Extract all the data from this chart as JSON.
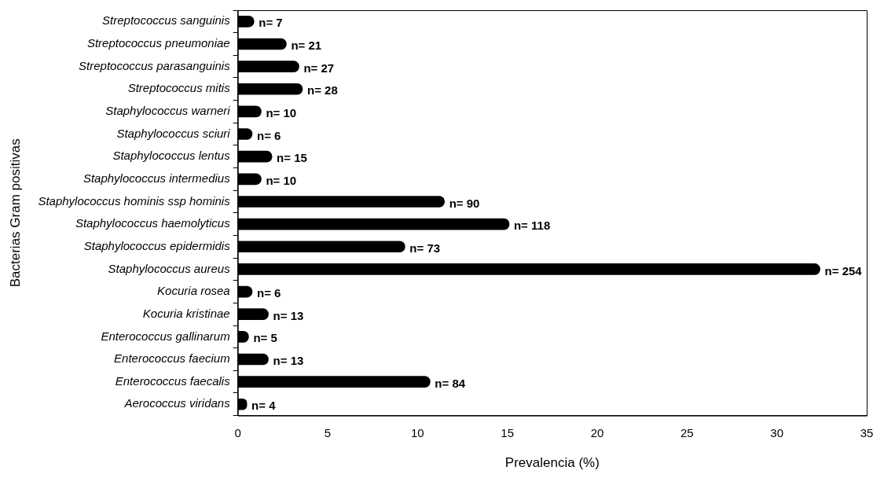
{
  "chart_data": {
    "type": "bar",
    "orientation": "horizontal",
    "xlabel": "Prevalencia (%)",
    "ylabel": "Bacterias Gram positivas",
    "categories": [
      "Streptococcus sanguinis",
      "Streptococcus pneumoniae",
      "Streptococcus parasanguinis",
      "Streptococcus mitis",
      "Staphylococcus warneri",
      "Staphylococcus sciuri",
      "Staphylococcus lentus",
      "Staphylococcus intermedius",
      "Staphylococcus hominis ssp hominis",
      "Staphylococcus haemolyticus",
      "Staphylococcus epidermidis",
      "Staphylococcus aureus",
      "Kocuria rosea",
      "Kocuria kristinae",
      "Enterococcus gallinarum",
      "Enterococcus faecium",
      "Enterococcus faecalis",
      "Aerococcus viridans"
    ],
    "values": [
      0.9,
      2.7,
      3.4,
      3.6,
      1.3,
      0.8,
      1.9,
      1.3,
      11.5,
      15.1,
      9.3,
      32.4,
      0.8,
      1.7,
      0.6,
      1.7,
      10.7,
      0.5
    ],
    "annotations": [
      {
        "text": "n= 7",
        "x": 0.9,
        "y": "Streptococcus sanguinis"
      },
      {
        "text": "n= 21",
        "x": 2.7,
        "y": "Streptococcus pneumoniae"
      },
      {
        "text": "n= 27",
        "x": 3.4,
        "y": "Streptococcus parasanguinis"
      },
      {
        "text": "n= 28",
        "x": 3.6,
        "y": "Streptococcus mitis"
      },
      {
        "text": "n= 10",
        "x": 1.3,
        "y": "Staphylococcus warneri"
      },
      {
        "text": "n= 6",
        "x": 0.8,
        "y": "Staphylococcus sciuri"
      },
      {
        "text": "n= 15",
        "x": 1.9,
        "y": "Staphylococcus lentus"
      },
      {
        "text": "n= 10",
        "x": 1.3,
        "y": "Staphylococcus intermedius"
      },
      {
        "text": "n= 90",
        "x": 11.5,
        "y": "Staphylococcus hominis ssp hominis"
      },
      {
        "text": "n= 118",
        "x": 15.1,
        "y": "Staphylococcus haemolyticus"
      },
      {
        "text": "n= 73",
        "x": 9.3,
        "y": "Staphylococcus epidermidis"
      },
      {
        "text": "n= 254",
        "x": 32.4,
        "y": "Staphylococcus aureus"
      },
      {
        "text": "n= 6",
        "x": 0.8,
        "y": "Kocuria rosea"
      },
      {
        "text": "n= 13",
        "x": 1.7,
        "y": "Kocuria kristinae"
      },
      {
        "text": "n= 5",
        "x": 0.6,
        "y": "Enterococcus gallinarum"
      },
      {
        "text": "n= 13",
        "x": 1.7,
        "y": "Enterococcus faecium"
      },
      {
        "text": "n= 84",
        "x": 10.7,
        "y": "Enterococcus faecalis"
      },
      {
        "text": "n= 4",
        "x": 0.5,
        "y": "Aerococcus viridans"
      }
    ],
    "color": "#000000",
    "xlim": [
      0,
      35
    ],
    "xticks": [
      0,
      5,
      10,
      15,
      20,
      25,
      30,
      35
    ],
    "grid": false,
    "legend": false
  }
}
